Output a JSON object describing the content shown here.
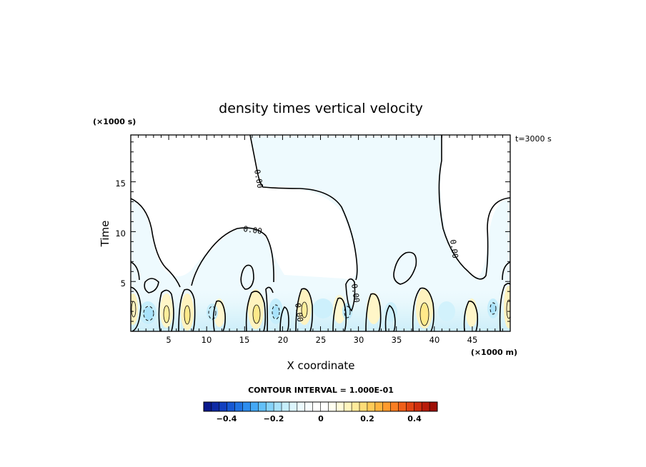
{
  "chart_data": {
    "type": "heatmap",
    "title": "density times vertical velocity",
    "xlabel": "X coordinate",
    "ylabel": "Time",
    "x_multiplier": "(×1000 m)",
    "y_multiplier": "(×1000 s)",
    "time_stamp": "t=3000 s",
    "xlim": [
      0,
      50
    ],
    "ylim": [
      0,
      19.7
    ],
    "x_ticks": [
      "5",
      "10",
      "15",
      "20",
      "25",
      "30",
      "35",
      "40",
      "45"
    ],
    "y_ticks": [
      "5",
      "10",
      "15"
    ],
    "contour_interval": "CONTOUR INTERVAL = 1.000E-01",
    "contour_labels": [
      "0.00",
      "0.00",
      "0.00",
      "0.00",
      "0.00"
    ],
    "colorbar": {
      "range": [
        -0.5,
        0.5
      ],
      "tick_labels": [
        "−0.4",
        "−0.2",
        "0",
        "0.2",
        "0.4"
      ],
      "tick_values": [
        -0.4,
        -0.2,
        0,
        0.2,
        0.4
      ],
      "colors": [
        "#0b1a8c",
        "#0e2aa5",
        "#1240bf",
        "#1658d3",
        "#1f72e2",
        "#2d8dee",
        "#44a8f5",
        "#63c0f8",
        "#86d3fa",
        "#a8e2fb",
        "#c6eefc",
        "#dcf5fd",
        "#ecfafe",
        "#f7fdff",
        "#ffffff",
        "#ffffff",
        "#fffff0",
        "#fffbd9",
        "#fff5bd",
        "#ffeb9b",
        "#ffdd78",
        "#ffcb58",
        "#ffb53f",
        "#ff9b2e",
        "#f97e22",
        "#ef5f19",
        "#e14513",
        "#cf2e0e",
        "#b81c0a",
        "#9e1007"
      ]
    },
    "features": [
      {
        "kind": "zero-contour-region",
        "description_value": 0.0
      },
      {
        "kind": "positive-cells",
        "x": [
          2,
          4.5,
          7,
          11,
          15.5,
          22,
          28,
          32,
          38.5,
          44
        ],
        "y_max": 4
      },
      {
        "kind": "negative-cells",
        "x": [
          2,
          10.5,
          19,
          27.5,
          33.5,
          47.5
        ],
        "y_max": 3.5
      }
    ]
  }
}
